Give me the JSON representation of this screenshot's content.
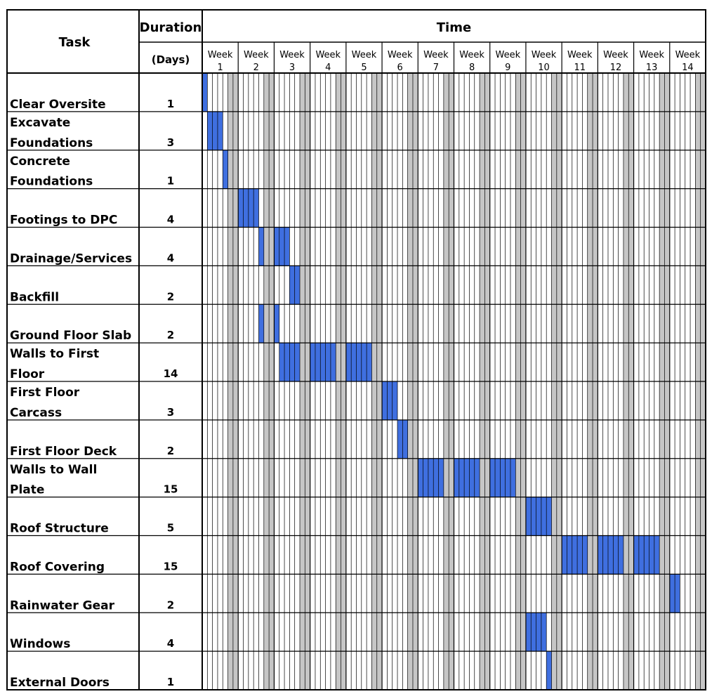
{
  "header": {
    "task_label": "Task",
    "duration_label": "Duration",
    "duration_unit": "(Days)",
    "time_label": "Time",
    "week_prefix": "Week"
  },
  "colors": {
    "bar": "#3f6fe0",
    "bar_stroke": "#1a3a8a",
    "weekend": "#c6c6c6",
    "grid": "#000000"
  },
  "chart_data": {
    "type": "gantt",
    "weeks": [
      "1",
      "2",
      "3",
      "4",
      "5",
      "6",
      "7",
      "8",
      "9",
      "10",
      "11",
      "12",
      "13",
      "14"
    ],
    "days_per_week": 7,
    "weekend_days": [
      6,
      7
    ],
    "tasks": [
      {
        "name_lines": [
          "Clear Oversite"
        ],
        "duration": "1",
        "segments": [
          [
            1,
            1
          ]
        ]
      },
      {
        "name_lines": [
          "Excavate",
          "Foundations"
        ],
        "duration": "3",
        "segments": [
          [
            2,
            4
          ]
        ]
      },
      {
        "name_lines": [
          "Concrete",
          "Foundations"
        ],
        "duration": "1",
        "segments": [
          [
            5,
            5
          ]
        ]
      },
      {
        "name_lines": [
          "Footings to DPC"
        ],
        "duration": "4",
        "segments": [
          [
            8,
            11
          ]
        ]
      },
      {
        "name_lines": [
          "Drainage/Services"
        ],
        "duration": "4",
        "segments": [
          [
            12,
            12
          ],
          [
            15,
            17
          ]
        ]
      },
      {
        "name_lines": [
          "Backfill"
        ],
        "duration": "2",
        "segments": [
          [
            18,
            19
          ]
        ]
      },
      {
        "name_lines": [
          "Ground Floor Slab"
        ],
        "duration": "2",
        "segments": [
          [
            12,
            12
          ],
          [
            15,
            15
          ]
        ]
      },
      {
        "name_lines": [
          "Walls to First",
          "Floor"
        ],
        "duration": "14",
        "segments": [
          [
            16,
            19
          ],
          [
            22,
            26
          ],
          [
            29,
            33
          ]
        ]
      },
      {
        "name_lines": [
          "First Floor",
          "Carcass"
        ],
        "duration": "3",
        "segments": [
          [
            36,
            38
          ]
        ]
      },
      {
        "name_lines": [
          "First Floor Deck"
        ],
        "duration": "2",
        "segments": [
          [
            39,
            40
          ]
        ]
      },
      {
        "name_lines": [
          "Walls to Wall",
          "Plate"
        ],
        "duration": "15",
        "segments": [
          [
            43,
            47
          ],
          [
            50,
            54
          ],
          [
            57,
            61
          ]
        ]
      },
      {
        "name_lines": [
          "Roof Structure"
        ],
        "duration": "5",
        "segments": [
          [
            64,
            68
          ]
        ]
      },
      {
        "name_lines": [
          "Roof Covering"
        ],
        "duration": "15",
        "segments": [
          [
            71,
            75
          ],
          [
            78,
            82
          ],
          [
            85,
            89
          ]
        ]
      },
      {
        "name_lines": [
          "Rainwater Gear"
        ],
        "duration": "2",
        "segments": [
          [
            92,
            93
          ]
        ]
      },
      {
        "name_lines": [
          "Windows"
        ],
        "duration": "4",
        "segments": [
          [
            64,
            67
          ]
        ]
      },
      {
        "name_lines": [
          "External Doors"
        ],
        "duration": "1",
        "segments": [
          [
            68,
            68
          ]
        ]
      }
    ]
  }
}
